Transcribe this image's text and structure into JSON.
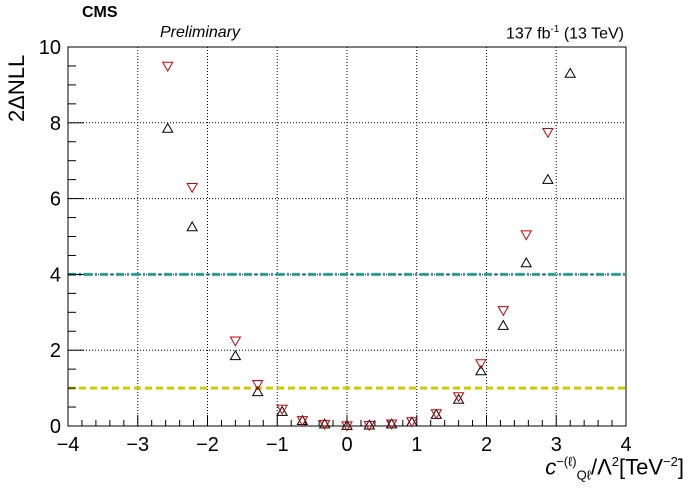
{
  "header": {
    "experiment": "CMS",
    "status": "Preliminary",
    "lumi_value": "137 fb",
    "lumi_exp": "-1",
    "lumi_energy": " (13 TeV)"
  },
  "axes": {
    "ylabel": "2ΔNLL",
    "xlabel_c": "c",
    "xlabel_sup": "−(ℓ)",
    "xlabel_sub": "Qℓ",
    "xlabel_mid": "/Λ",
    "xlabel_pow": "2",
    "xlabel_unit": "[TeV",
    "xlabel_unit_pow": "−2",
    "xlabel_close": "]"
  },
  "chart_data": {
    "type": "scatter",
    "xlim": [
      -4,
      4
    ],
    "ylim": [
      0,
      10
    ],
    "xticks": [
      "−4",
      "−3",
      "−2",
      "−1",
      "0",
      "1",
      "2",
      "3",
      "4"
    ],
    "yticks": [
      "0",
      "2",
      "4",
      "6",
      "8",
      "10"
    ],
    "grid": true,
    "series": [
      {
        "marker": "open-triangle-up",
        "color": "#000000",
        "x": [
          -2.57,
          -2.22,
          -1.6,
          -1.28,
          -0.93,
          -0.64,
          -0.32,
          0.0,
          0.32,
          0.64,
          0.93,
          1.28,
          1.6,
          1.92,
          2.24,
          2.57,
          2.88,
          3.2
        ],
        "y": [
          7.85,
          5.25,
          1.85,
          0.9,
          0.38,
          0.14,
          0.05,
          0.01,
          0.02,
          0.05,
          0.1,
          0.3,
          0.7,
          1.45,
          2.65,
          4.3,
          6.5,
          9.3
        ]
      },
      {
        "marker": "open-triangle-down",
        "color": "#cc0000",
        "x": [
          -2.57,
          -2.22,
          -1.6,
          -1.28,
          -0.93,
          -0.64,
          -0.32,
          0.0,
          0.32,
          0.64,
          0.93,
          1.28,
          1.6,
          1.92,
          2.24,
          2.57,
          2.88
        ],
        "y": [
          9.5,
          6.3,
          2.25,
          1.1,
          0.45,
          0.15,
          0.05,
          0.01,
          0.02,
          0.06,
          0.12,
          0.33,
          0.78,
          1.65,
          3.05,
          5.05,
          7.75
        ]
      }
    ],
    "reference_lines": [
      {
        "y": 4,
        "color": "#2a9d9d",
        "style": "dash-dot"
      },
      {
        "y": 1,
        "color": "#cccc00",
        "style": "dashed"
      }
    ]
  }
}
